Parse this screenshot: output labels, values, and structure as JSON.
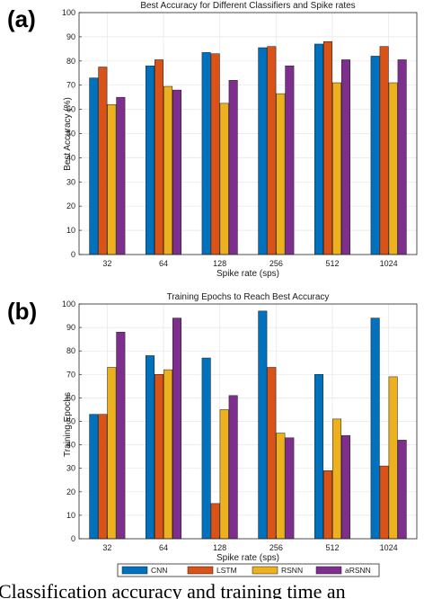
{
  "figure": {
    "caption": "Classification accuracy and training time an"
  },
  "legend": {
    "entries": [
      "CNN",
      "LSTM",
      "RSNN",
      "aRSNN"
    ]
  },
  "colors": {
    "CNN": "#0072BD",
    "LSTM": "#D95319",
    "RSNN": "#EDB120",
    "aRSNN": "#7E2F8E",
    "grid": "#e6e6e6",
    "axis": "#262626"
  },
  "chart_data": [
    {
      "panel_label": "(a)",
      "type": "bar",
      "title": "Best Accuracy for Different Classifiers and Spike rates",
      "xlabel": "Spike rate (sps)",
      "ylabel": "Best Accuracy (%)",
      "categories": [
        "32",
        "64",
        "128",
        "256",
        "512",
        "1024"
      ],
      "ylim": [
        0,
        100
      ],
      "yticks": [
        0,
        10,
        20,
        30,
        40,
        50,
        60,
        70,
        80,
        90,
        100
      ],
      "grid": true,
      "series": [
        {
          "name": "CNN",
          "values": [
            73,
            78,
            83.5,
            85.5,
            87,
            82
          ]
        },
        {
          "name": "LSTM",
          "values": [
            77.5,
            80.5,
            83,
            86,
            88,
            86
          ]
        },
        {
          "name": "RSNN",
          "values": [
            62,
            69.5,
            62.5,
            66.5,
            71,
            71
          ]
        },
        {
          "name": "aRSNN",
          "values": [
            65,
            68,
            72,
            78,
            80.5,
            80.5
          ]
        }
      ]
    },
    {
      "panel_label": "(b)",
      "type": "bar",
      "title": "Training Epochs to Reach Best Accuracy",
      "xlabel": "Spike rate (sps)",
      "ylabel": "Training Epochs",
      "categories": [
        "32",
        "64",
        "128",
        "256",
        "512",
        "1024"
      ],
      "ylim": [
        0,
        100
      ],
      "yticks": [
        0,
        10,
        20,
        30,
        40,
        50,
        60,
        70,
        80,
        90,
        100
      ],
      "grid": true,
      "legend_placement": "bottom",
      "series": [
        {
          "name": "CNN",
          "values": [
            53,
            78,
            77,
            97,
            70,
            94
          ]
        },
        {
          "name": "LSTM",
          "values": [
            53,
            70,
            15,
            73,
            29,
            31
          ]
        },
        {
          "name": "RSNN",
          "values": [
            73,
            72,
            55,
            45,
            51,
            69
          ]
        },
        {
          "name": "aRSNN",
          "values": [
            88,
            94,
            61,
            43,
            44,
            42
          ]
        }
      ]
    }
  ]
}
